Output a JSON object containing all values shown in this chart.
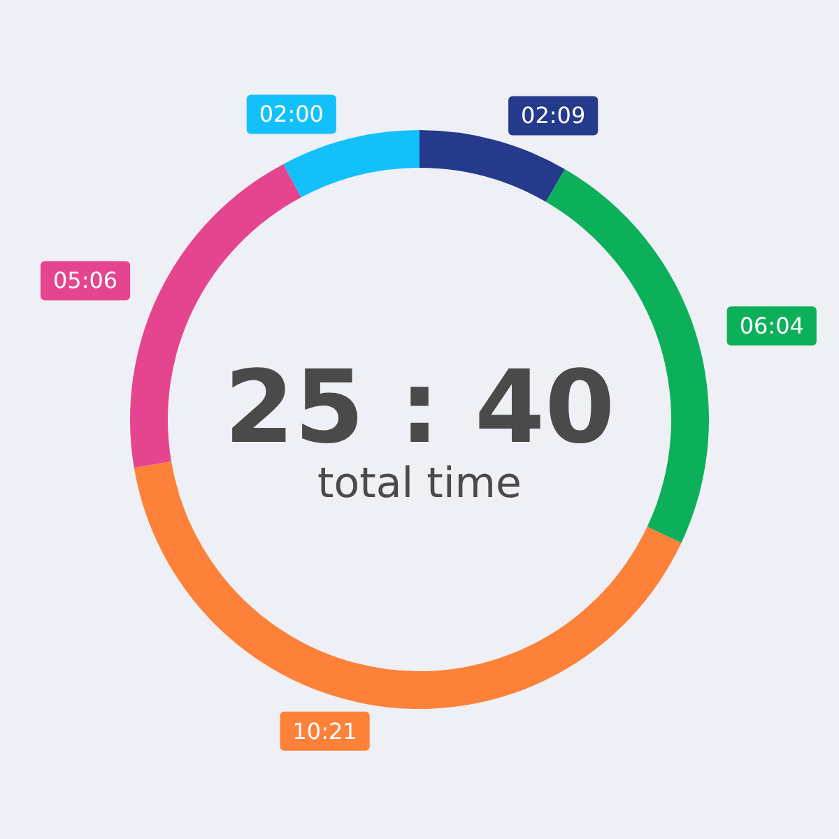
{
  "chart_data": {
    "type": "donut",
    "title": "25 : 40",
    "subtitle": "total time",
    "categories": [
      null,
      null,
      null,
      null,
      null
    ],
    "values": [
      129,
      364,
      621,
      306,
      120
    ],
    "value_labels": [
      "02:09",
      "06:04",
      "10:21",
      "05:06",
      "02:00"
    ],
    "colors": [
      "#253a8a",
      "#0db05a",
      "#fd8139",
      "#e5458f",
      "#14c0fa"
    ]
  }
}
